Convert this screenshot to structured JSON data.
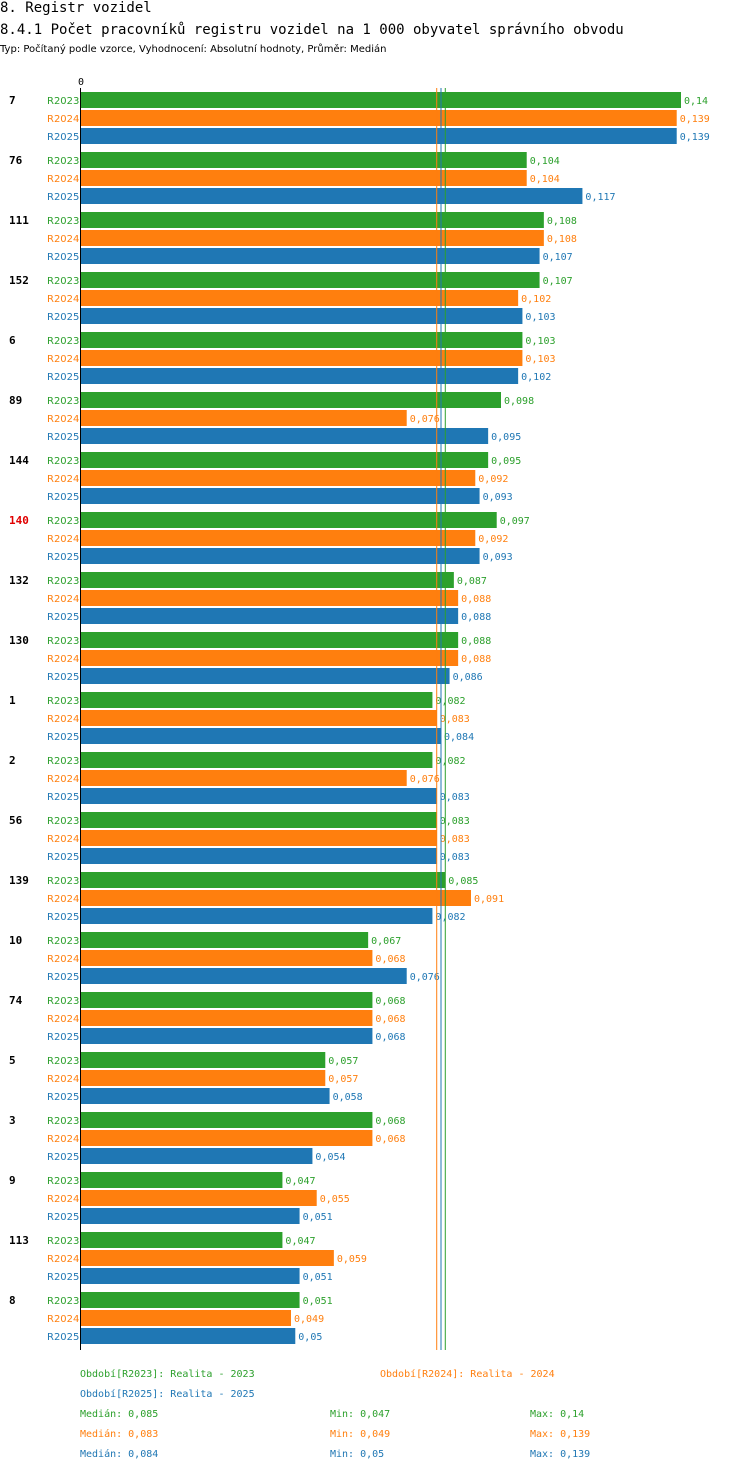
{
  "header": {
    "section": "8. Registr vozidel",
    "title": "8.4.1 Počet pracovníků registru vozidel na 1 000 obyvatel správního obvodu",
    "subtitle": "Typ: Počítaný podle vzorce, Vyhodnocení: Absolutní hodnoty, Průměr: Medián"
  },
  "chart_data": {
    "type": "bar",
    "orientation": "horizontal",
    "title": "8.4.1 Počet pracovníků registru vozidel na 1 000 obyvatel správního obvodu",
    "axis_zero_label": "0",
    "xlim": [
      0,
      0.14
    ],
    "highlighted_category": "140",
    "categories": [
      "7",
      "76",
      "111",
      "152",
      "6",
      "89",
      "144",
      "140",
      "132",
      "130",
      "1",
      "2",
      "56",
      "139",
      "10",
      "74",
      "5",
      "3",
      "9",
      "113",
      "8"
    ],
    "series": [
      {
        "name": "R2023",
        "label": "R2023",
        "color": "#2ca02c",
        "values": [
          0.14,
          0.104,
          0.108,
          0.107,
          0.103,
          0.098,
          0.095,
          0.097,
          0.087,
          0.088,
          0.082,
          0.082,
          0.083,
          0.085,
          0.067,
          0.068,
          0.057,
          0.068,
          0.047,
          0.047,
          0.051
        ],
        "value_labels": [
          "0,14",
          "0,104",
          "0,108",
          "0,107",
          "0,103",
          "0,098",
          "0,095",
          "0,097",
          "0,087",
          "0,088",
          "0,082",
          "0,082",
          "0,083",
          "0,085",
          "0,067",
          "0,068",
          "0,057",
          "0,068",
          "0,047",
          "0,047",
          "0,051"
        ]
      },
      {
        "name": "R2024",
        "label": "R2024",
        "color": "#ff7f0e",
        "values": [
          0.139,
          0.104,
          0.108,
          0.102,
          0.103,
          0.076,
          0.092,
          0.092,
          0.088,
          0.088,
          0.083,
          0.076,
          0.083,
          0.091,
          0.068,
          0.068,
          0.057,
          0.068,
          0.055,
          0.059,
          0.049
        ],
        "value_labels": [
          "0,139",
          "0,104",
          "0,108",
          "0,102",
          "0,103",
          "0,076",
          "0,092",
          "0,092",
          "0,088",
          "0,088",
          "0,083",
          "0,076",
          "0,083",
          "0,091",
          "0,068",
          "0,068",
          "0,057",
          "0,068",
          "0,055",
          "0,059",
          "0,049"
        ]
      },
      {
        "name": "R2025",
        "label": "R2025",
        "color": "#1f77b4",
        "values": [
          0.139,
          0.117,
          0.107,
          0.103,
          0.102,
          0.095,
          0.093,
          0.093,
          0.088,
          0.086,
          0.084,
          0.083,
          0.083,
          0.082,
          0.076,
          0.068,
          0.058,
          0.054,
          0.051,
          0.051,
          0.05
        ],
        "value_labels": [
          "0,139",
          "0,117",
          "0,107",
          "0,103",
          "0,102",
          "0,095",
          "0,093",
          "0,093",
          "0,088",
          "0,086",
          "0,084",
          "0,083",
          "0,083",
          "0,082",
          "0,076",
          "0,068",
          "0,058",
          "0,054",
          "0,051",
          "0,051",
          "0,05"
        ]
      }
    ],
    "median_lines": [
      0.085,
      0.083,
      0.084
    ]
  },
  "legend": {
    "periods": [
      {
        "text": "Období[R2023]: Realita - 2023",
        "color": "#2ca02c"
      },
      {
        "text": "Období[R2024]: Realita - 2024",
        "color": "#ff7f0e"
      },
      {
        "text": "Období[R2025]: Realita - 2025",
        "color": "#1f77b4"
      }
    ],
    "stats": [
      {
        "median": "Medián: 0,085",
        "min": "Min: 0,047",
        "max": "Max: 0,14",
        "color": "#2ca02c"
      },
      {
        "median": "Medián: 0,083",
        "min": "Min: 0,049",
        "max": "Max: 0,139",
        "color": "#ff7f0e"
      },
      {
        "median": "Medián: 0,084",
        "min": "Min: 0,05",
        "max": "Max: 0,139",
        "color": "#1f77b4"
      }
    ]
  }
}
